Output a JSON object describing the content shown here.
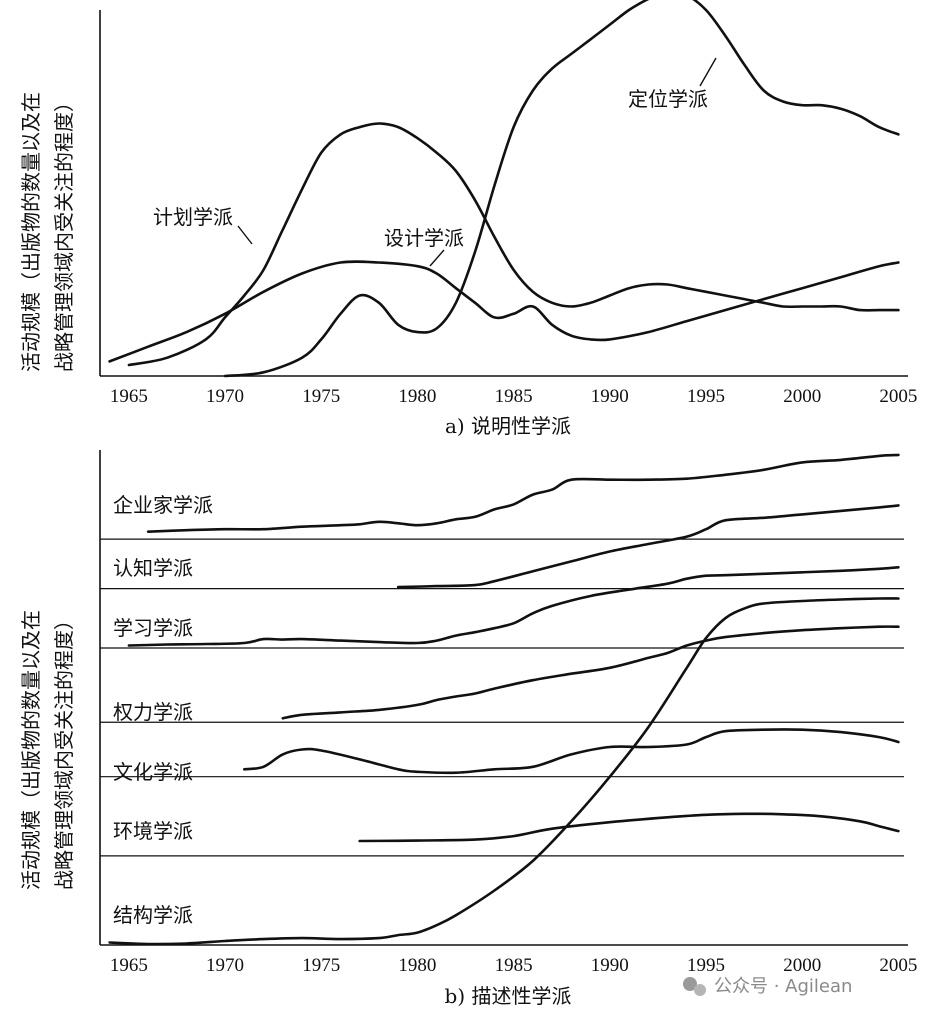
{
  "chart_data": [
    {
      "type": "line",
      "caption": "a) 说明性学派",
      "ylabel_line1": "活动规模（出版物的数量以及在",
      "ylabel_line2": "战略管理领域内受关注的程度）",
      "x_ticks": [
        1965,
        1970,
        1975,
        1980,
        1985,
        1990,
        1995,
        2000,
        2005
      ],
      "xlim": [
        1963.5,
        2005.5
      ],
      "ylim": [
        0,
        100
      ],
      "series": [
        {
          "name": "计划学派",
          "x": [
            1965,
            1967,
            1969,
            1970,
            1971,
            1972,
            1973,
            1974,
            1975,
            1976,
            1977,
            1978,
            1979,
            1980,
            1981,
            1982,
            1983,
            1984,
            1985,
            1986,
            1987,
            1988,
            1989,
            1990,
            1991,
            1992,
            1993,
            1994,
            1995,
            1996,
            1997,
            1998,
            1999,
            2000,
            2001,
            2002,
            2003,
            2004,
            2005
          ],
          "y": [
            3,
            5,
            10,
            16,
            22,
            29,
            40,
            51,
            61,
            66,
            68,
            69,
            68,
            65,
            61,
            56,
            48,
            38,
            29,
            23,
            20,
            19,
            20,
            22,
            24,
            25,
            25,
            24,
            23,
            22,
            21,
            20,
            19,
            19,
            19,
            19,
            18,
            18,
            18
          ]
        },
        {
          "name": "设计学派",
          "x": [
            1964,
            1966,
            1968,
            1970,
            1972,
            1974,
            1976,
            1978,
            1980,
            1981,
            1982,
            1983,
            1984,
            1985,
            1986,
            1987,
            1988,
            1989,
            1990,
            1992,
            1994,
            1996,
            1998,
            2000,
            2002,
            2004,
            2005
          ],
          "y": [
            4,
            8,
            12,
            17,
            23,
            28,
            31,
            31,
            30,
            28,
            24,
            20,
            16,
            17,
            19,
            14,
            11,
            10,
            10,
            12,
            15,
            18,
            21,
            24,
            27,
            30,
            31
          ]
        },
        {
          "name": "定位学派",
          "x": [
            1970,
            1972,
            1974,
            1975,
            1976,
            1977,
            1978,
            1979,
            1980,
            1981,
            1982,
            1983,
            1984,
            1985,
            1986,
            1987,
            1988,
            1989,
            1990,
            1991,
            1992,
            1993,
            1994,
            1995,
            1996,
            1997,
            1998,
            1999,
            2000,
            2001,
            2002,
            2003,
            2004,
            2005
          ],
          "y": [
            0,
            1,
            5,
            10,
            17,
            22,
            20,
            14,
            12,
            13,
            20,
            34,
            52,
            68,
            78,
            84,
            88,
            92,
            96,
            100,
            103,
            105,
            104,
            100,
            93,
            85,
            78,
            75,
            74,
            74,
            73,
            71,
            68,
            66
          ]
        }
      ]
    },
    {
      "type": "line",
      "caption": "b) 描述性学派",
      "ylabel_line1": "活动规模（出版物的数量以及在",
      "ylabel_line2": "战略管理领域内受关注的程度）",
      "x_ticks": [
        1965,
        1970,
        1975,
        1980,
        1985,
        1990,
        1995,
        2000,
        2005
      ],
      "xlim": [
        1963.5,
        2005.5
      ],
      "ylim": [
        0,
        100
      ],
      "separators": [
        82,
        72,
        60,
        45,
        34,
        18
      ],
      "series": [
        {
          "name": "企业家学派",
          "x": [
            1966,
            1968,
            1970,
            1972,
            1974,
            1976,
            1977,
            1978,
            1979,
            1980,
            1981,
            1982,
            1983,
            1984,
            1985,
            1986,
            1987,
            1988,
            1990,
            1992,
            1994,
            1996,
            1998,
            2000,
            2002,
            2004,
            2005
          ],
          "y": [
            83.5,
            83.8,
            84,
            84,
            84.5,
            84.8,
            85,
            85.5,
            85.2,
            84.8,
            85.2,
            86,
            86.5,
            88,
            89,
            91,
            92,
            94,
            94,
            94,
            94.2,
            95,
            96,
            97.5,
            98,
            98.8,
            99
          ]
        },
        {
          "name": "认知学派",
          "x": [
            1979,
            1981,
            1983,
            1984,
            1986,
            1988,
            1990,
            1992,
            1994,
            1995,
            1996,
            1998,
            2000,
            2002,
            2004,
            2005
          ],
          "y": [
            72.3,
            72.5,
            72.7,
            73.5,
            75.5,
            77.5,
            79.5,
            81,
            82.5,
            84,
            85.8,
            86.3,
            87,
            87.7,
            88.4,
            88.8
          ]
        },
        {
          "name": "学习学派",
          "x": [
            1965,
            1967,
            1969,
            1971,
            1972,
            1973,
            1974,
            1976,
            1978,
            1980,
            1981,
            1982,
            1983,
            1984,
            1985,
            1986,
            1987,
            1989,
            1991,
            1993,
            1994,
            1995,
            1996,
            1998,
            2000,
            2002,
            2004,
            2005
          ],
          "y": [
            60.5,
            60.7,
            60.8,
            61,
            61.8,
            61.7,
            61.8,
            61.5,
            61.2,
            61,
            61.5,
            62.5,
            63.2,
            64,
            65,
            67,
            68.5,
            70.5,
            71.8,
            73,
            74,
            74.6,
            74.7,
            75,
            75.3,
            75.6,
            76,
            76.3
          ]
        },
        {
          "name": "权力学派",
          "x": [
            1973,
            1974,
            1976,
            1978,
            1980,
            1981,
            1982,
            1983,
            1984,
            1986,
            1988,
            1990,
            1992,
            1993,
            1994,
            1995,
            1996,
            1998,
            2000,
            2002,
            2004,
            2005
          ],
          "y": [
            45.8,
            46.5,
            47,
            47.5,
            48.5,
            49.5,
            50.2,
            50.8,
            51.8,
            53.5,
            54.8,
            56,
            58,
            59,
            60.5,
            61.5,
            62.2,
            63,
            63.6,
            64,
            64.3,
            64.3
          ]
        },
        {
          "name": "文化学派",
          "x": [
            1971,
            1972,
            1973,
            1974,
            1975,
            1977,
            1979,
            1980,
            1982,
            1984,
            1986,
            1988,
            1990,
            1992,
            1994,
            1995,
            1996,
            1998,
            2000,
            2002,
            2004,
            2005
          ],
          "y": [
            35.5,
            36,
            38.5,
            39.5,
            39.3,
            37.5,
            35.5,
            35,
            34.8,
            35.5,
            36,
            38.5,
            40,
            40,
            40.5,
            42,
            43.2,
            43.5,
            43.5,
            43,
            42,
            41
          ]
        },
        {
          "name": "环境学派",
          "x": [
            1977,
            1980,
            1983,
            1985,
            1987,
            1990,
            1993,
            1995,
            1997,
            1999,
            2001,
            2003,
            2004,
            2005
          ],
          "y": [
            21,
            21.1,
            21.3,
            22,
            23.5,
            24.8,
            25.8,
            26.3,
            26.5,
            26.4,
            26,
            25,
            24,
            23
          ]
        },
        {
          "name": "结构学派",
          "x": [
            1964,
            1966,
            1968,
            1970,
            1972,
            1974,
            1976,
            1978,
            1979,
            1980,
            1981,
            1982,
            1984,
            1986,
            1988,
            1990,
            1992,
            1994,
            1995,
            1996,
            1997,
            1998,
            2000,
            2002,
            2004,
            2005
          ],
          "y": [
            0.5,
            0.2,
            0.3,
            0.8,
            1.2,
            1.4,
            1.2,
            1.4,
            2,
            2.5,
            4,
            6,
            11,
            17,
            25,
            34,
            44,
            56,
            62,
            66,
            68,
            69,
            69.5,
            69.8,
            70,
            70
          ]
        }
      ]
    }
  ],
  "watermark": "公众号 · Agilean"
}
